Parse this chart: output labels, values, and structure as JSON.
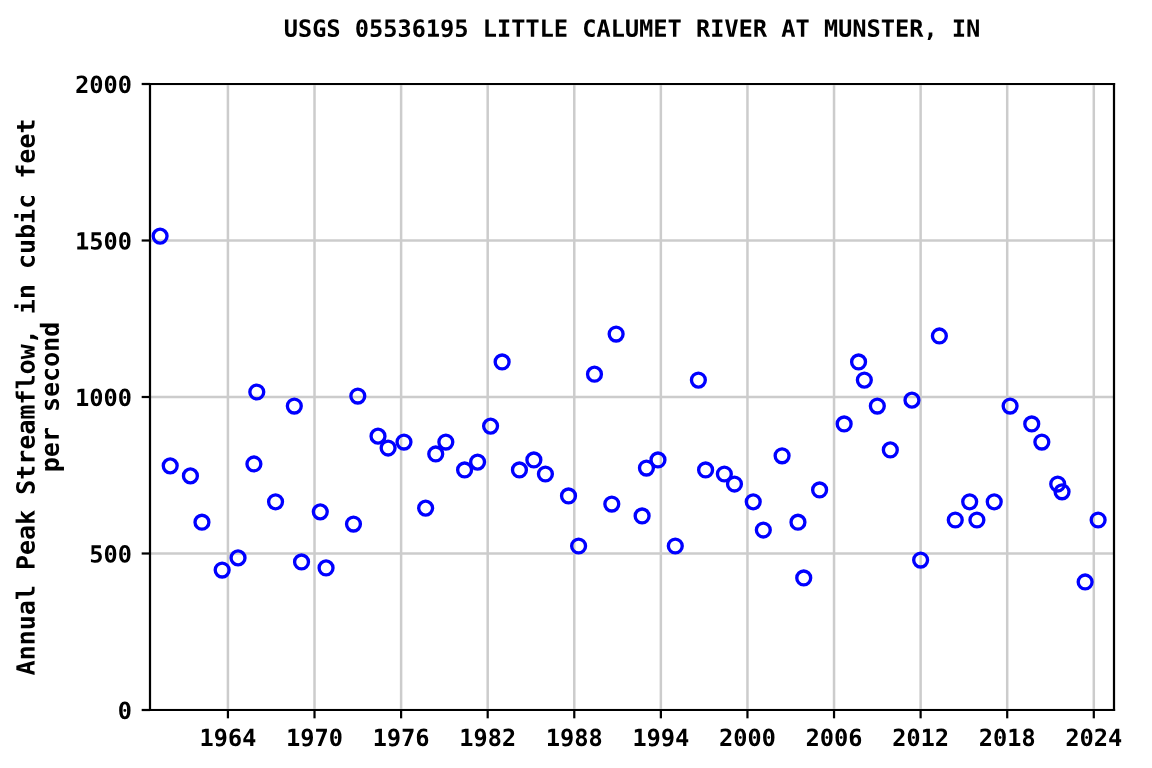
{
  "chart_data": {
    "type": "scatter",
    "title": "USGS 05536195 LITTLE CALUMET RIVER AT MUNSTER, IN",
    "ylabel": "Annual Peak Streamflow, in cubic feet\nper second",
    "xlim": [
      1958.6,
      2025.4
    ],
    "xticks": [
      1964,
      1970,
      1976,
      1982,
      1988,
      1994,
      2000,
      2006,
      2012,
      2018,
      2024
    ],
    "ylim": [
      0,
      2000
    ],
    "yticks": [
      0,
      500,
      1000,
      1500,
      2000
    ],
    "grid": true,
    "marker": "circle",
    "series": [
      {
        "color": "#0000ff",
        "x": [
          1959.3,
          1960.0,
          1961.4,
          1962.2,
          1963.6,
          1964.7,
          1965.8,
          1966.0,
          1967.3,
          1968.6,
          1969.1,
          1970.4,
          1970.8,
          1972.7,
          1973.0,
          1974.4,
          1975.1,
          1976.2,
          1977.7,
          1978.4,
          1979.1,
          1980.4,
          1981.3,
          1982.2,
          1983.0,
          1984.2,
          1985.2,
          1986.0,
          1987.6,
          1988.3,
          1989.4,
          1990.6,
          1990.9,
          1992.7,
          1993.0,
          1993.8,
          1995.0,
          1996.6,
          1997.1,
          1998.4,
          1999.1,
          2000.4,
          2001.1,
          2002.4,
          2003.5,
          2003.9,
          2005.0,
          2006.7,
          2007.7,
          2008.1,
          2009.0,
          2009.9,
          2011.4,
          2012.0,
          2013.3,
          2014.4,
          2015.4,
          2015.9,
          2017.1,
          2018.2,
          2019.7,
          2020.4,
          2021.5,
          2021.8,
          2023.4,
          2024.3
        ],
        "values": [
          1514,
          780,
          748,
          600,
          447,
          486,
          786,
          1016,
          665,
          971,
          473,
          633,
          454,
          594,
          1003,
          875,
          837,
          856,
          645,
          818,
          856,
          767,
          792,
          907,
          1112,
          767,
          799,
          754,
          684,
          524,
          1073,
          658,
          1201,
          620,
          773,
          799,
          524,
          1054,
          767,
          754,
          722,
          665,
          575,
          812,
          600,
          422,
          703,
          914,
          1112,
          1054,
          971,
          831,
          990,
          479,
          1195,
          607,
          665,
          607,
          665,
          971,
          914,
          856,
          722,
          697,
          409,
          607
        ]
      }
    ]
  }
}
